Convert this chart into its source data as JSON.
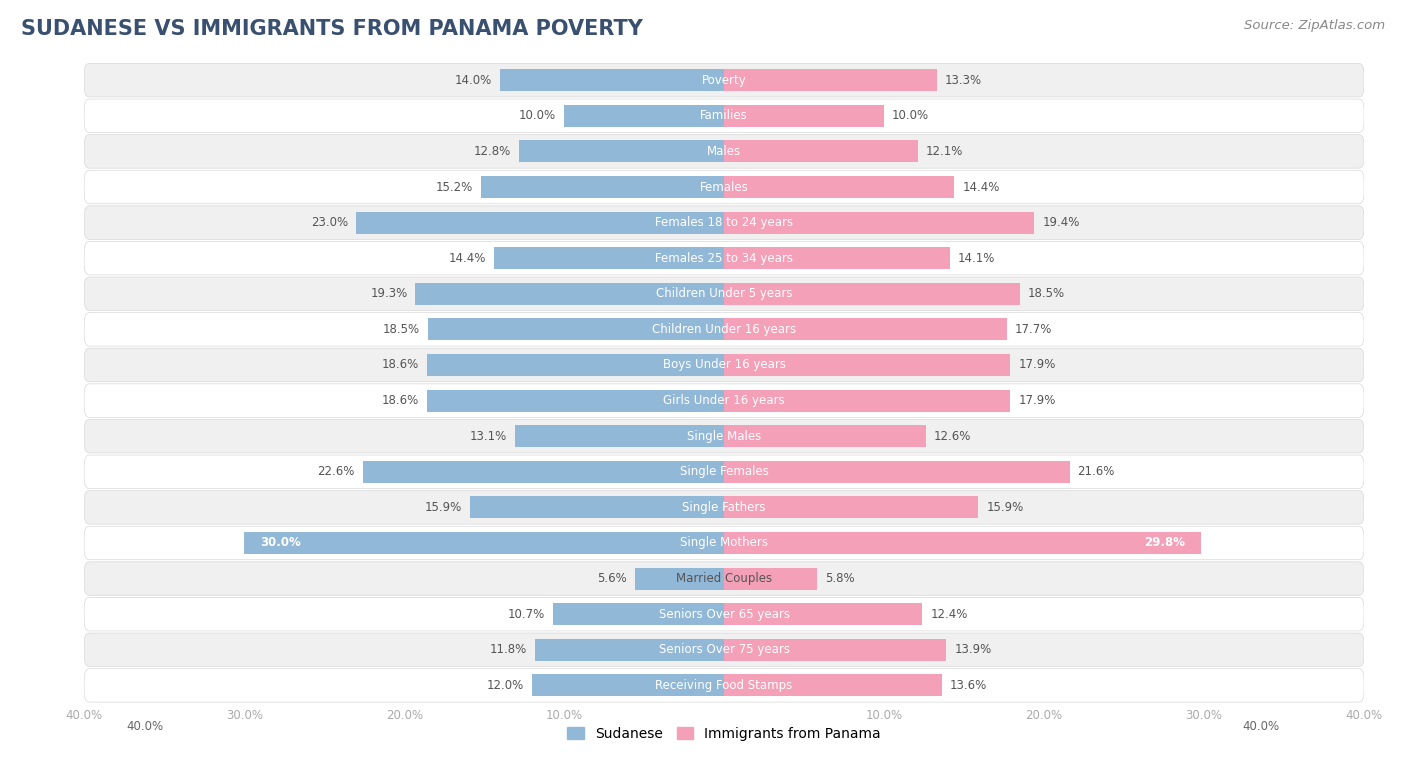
{
  "title": "SUDANESE VS IMMIGRANTS FROM PANAMA POVERTY",
  "source": "Source: ZipAtlas.com",
  "categories": [
    "Poverty",
    "Families",
    "Males",
    "Females",
    "Females 18 to 24 years",
    "Females 25 to 34 years",
    "Children Under 5 years",
    "Children Under 16 years",
    "Boys Under 16 years",
    "Girls Under 16 years",
    "Single Males",
    "Single Females",
    "Single Fathers",
    "Single Mothers",
    "Married Couples",
    "Seniors Over 65 years",
    "Seniors Over 75 years",
    "Receiving Food Stamps"
  ],
  "sudanese": [
    14.0,
    10.0,
    12.8,
    15.2,
    23.0,
    14.4,
    19.3,
    18.5,
    18.6,
    18.6,
    13.1,
    22.6,
    15.9,
    30.0,
    5.6,
    10.7,
    11.8,
    12.0
  ],
  "panama": [
    13.3,
    10.0,
    12.1,
    14.4,
    19.4,
    14.1,
    18.5,
    17.7,
    17.9,
    17.9,
    12.6,
    21.6,
    15.9,
    29.8,
    5.8,
    12.4,
    13.9,
    13.6
  ],
  "sudanese_color": "#92b8d8",
  "panama_color": "#f4a0b8",
  "bg_row_color": "#f0f0f0",
  "bg_alt_row_color": "#ffffff",
  "xlim": 40.0,
  "title_fontsize": 15,
  "source_fontsize": 9.5,
  "cat_label_fontsize": 8.5,
  "bar_label_fontsize": 8.5,
  "legend_fontsize": 10,
  "single_mothers_idx": 13
}
